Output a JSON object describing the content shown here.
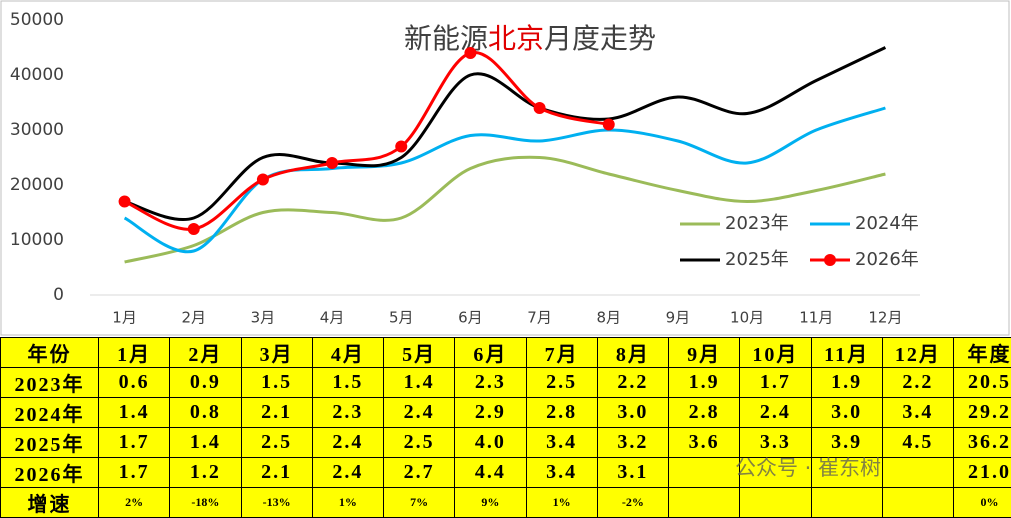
{
  "chart_data": {
    "type": "line",
    "title": [
      "新能源",
      "北京",
      "月度走势"
    ],
    "title_colors": [
      "#404040",
      "#e00000",
      "#404040"
    ],
    "categories": [
      "1月",
      "2月",
      "3月",
      "4月",
      "5月",
      "6月",
      "7月",
      "8月",
      "9月",
      "10月",
      "11月",
      "12月"
    ],
    "series": [
      {
        "name": "2023年",
        "color": "#9bbb59",
        "values": [
          6000,
          9000,
          15000,
          15000,
          14000,
          23000,
          25000,
          22000,
          19000,
          17000,
          19000,
          22000
        ]
      },
      {
        "name": "2024年",
        "color": "#00b0f0",
        "values": [
          14000,
          8000,
          21000,
          23000,
          24000,
          29000,
          28000,
          30000,
          28000,
          24000,
          30000,
          34000
        ]
      },
      {
        "name": "2025年",
        "color": "#000000",
        "values": [
          17000,
          14000,
          25000,
          24000,
          25000,
          40000,
          34000,
          32000,
          36000,
          33000,
          39000,
          45000
        ]
      },
      {
        "name": "2026年",
        "color": "#ff0000",
        "markers": true,
        "values": [
          17000,
          12000,
          21000,
          24000,
          27000,
          44000,
          34000,
          31000,
          null,
          null,
          null,
          null
        ]
      }
    ],
    "ylim": [
      0,
      50000
    ],
    "yticks": [
      0,
      10000,
      20000,
      30000,
      40000,
      50000
    ],
    "grid": false
  },
  "table": {
    "rows": [
      [
        "年份",
        "1月",
        "2月",
        "3月",
        "4月",
        "5月",
        "6月",
        "7月",
        "8月",
        "9月",
        "10月",
        "11月",
        "12月",
        "年度"
      ],
      [
        "2023年",
        "0.6",
        "0.9",
        "1.5",
        "1.5",
        "1.4",
        "2.3",
        "2.5",
        "2.2",
        "1.9",
        "1.7",
        "1.9",
        "2.2",
        "20.5"
      ],
      [
        "2024年",
        "1.4",
        "0.8",
        "2.1",
        "2.3",
        "2.4",
        "2.9",
        "2.8",
        "3.0",
        "2.8",
        "2.4",
        "3.0",
        "3.4",
        "29.2"
      ],
      [
        "2025年",
        "1.7",
        "1.4",
        "2.5",
        "2.4",
        "2.5",
        "4.0",
        "3.4",
        "3.2",
        "3.6",
        "3.3",
        "3.9",
        "4.5",
        "36.2"
      ],
      [
        "2026年",
        "1.7",
        "1.2",
        "2.1",
        "2.4",
        "2.7",
        "4.4",
        "3.4",
        "3.1",
        "",
        "",
        "",
        "",
        "21.0"
      ],
      [
        "增速",
        "2%",
        "-18%",
        "-13%",
        "1%",
        "7%",
        "9%",
        "1%",
        "-2%",
        "",
        "",
        "",
        "",
        "0%"
      ]
    ]
  },
  "watermark": "公众号 · 崔东树"
}
